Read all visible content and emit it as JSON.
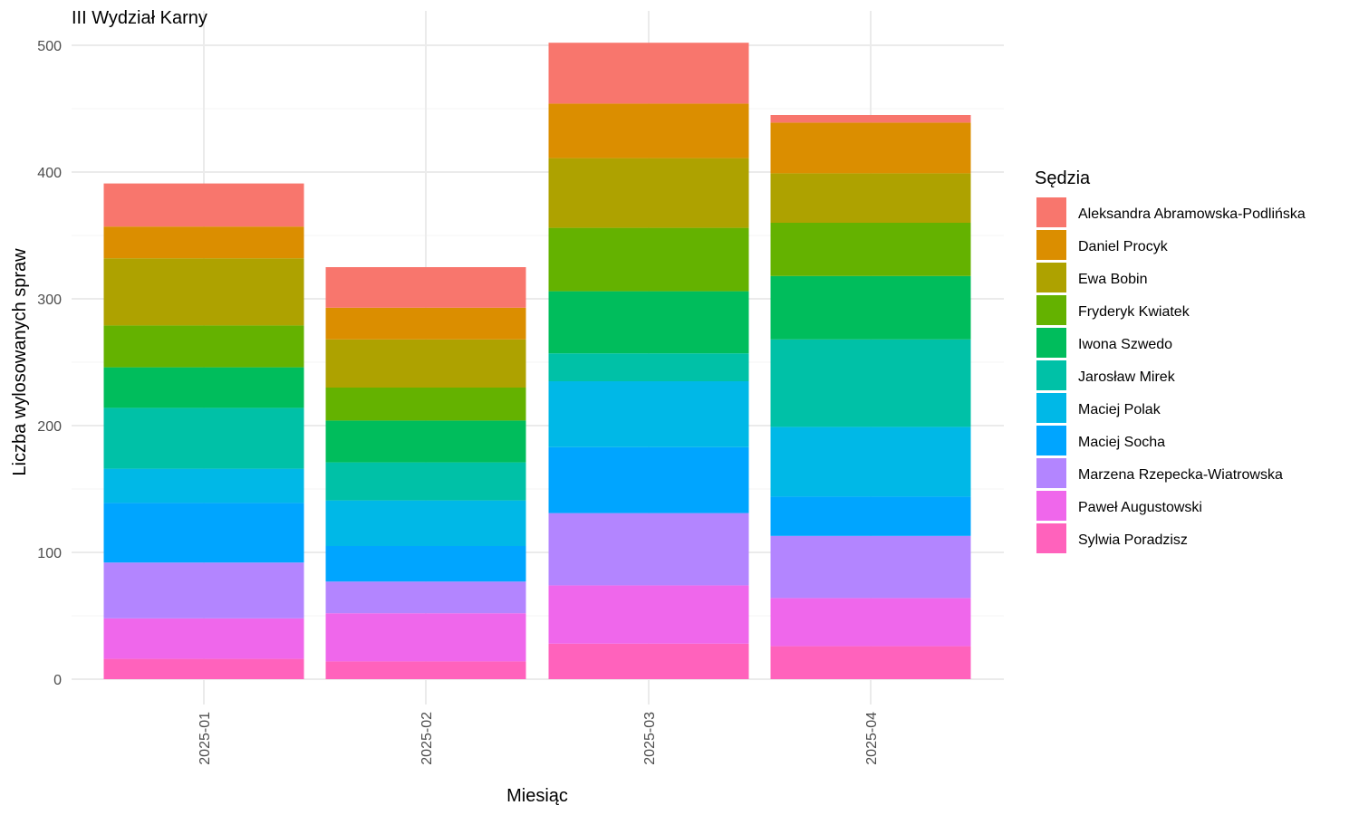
{
  "chart_data": {
    "type": "bar",
    "stacked": true,
    "title": "III Wydział Karny",
    "xlabel": "Miesiąc",
    "ylabel": "Liczba wylosowanych spraw",
    "ylim": [
      0,
      520
    ],
    "yticks": [
      0,
      100,
      200,
      300,
      400,
      500
    ],
    "grid": true,
    "legend_position": "right",
    "legend_title": "Sędzia",
    "categories": [
      "2025-01",
      "2025-02",
      "2025-03",
      "2025-04"
    ],
    "series": [
      {
        "name": "Sylwia Poradzisz",
        "color": "#FF62BC",
        "values": [
          16,
          14,
          28,
          26
        ]
      },
      {
        "name": "Paweł Augustowski",
        "color": "#EF67EB",
        "values": [
          32,
          38,
          46,
          38
        ]
      },
      {
        "name": "Marzena Rzepecka-Wiatrowska",
        "color": "#B385FF",
        "values": [
          44,
          25,
          57,
          49
        ]
      },
      {
        "name": "Maciej Socha",
        "color": "#00A5FF",
        "values": [
          47,
          28,
          52,
          31
        ]
      },
      {
        "name": "Maciej Polak",
        "color": "#00B8E7",
        "values": [
          27,
          36,
          52,
          55
        ]
      },
      {
        "name": "Jarosław Mirek",
        "color": "#00C1A7",
        "values": [
          48,
          30,
          22,
          69
        ]
      },
      {
        "name": "Iwona Szwedo",
        "color": "#00BD5C",
        "values": [
          32,
          33,
          49,
          50
        ]
      },
      {
        "name": "Fryderyk Kwiatek",
        "color": "#64B200",
        "values": [
          33,
          26,
          50,
          42
        ]
      },
      {
        "name": "Ewa Bobin",
        "color": "#AEA200",
        "values": [
          53,
          38,
          55,
          39
        ]
      },
      {
        "name": "Daniel Procyk",
        "color": "#DB8E00",
        "values": [
          25,
          25,
          43,
          40
        ]
      },
      {
        "name": "Aleksandra Abramowska-Podlińska",
        "color": "#F8766D",
        "values": [
          34,
          32,
          48,
          6
        ]
      }
    ],
    "legend_order": [
      "Aleksandra Abramowska-Podlińska",
      "Daniel Procyk",
      "Ewa Bobin",
      "Fryderyk Kwiatek",
      "Iwona Szwedo",
      "Jarosław Mirek",
      "Maciej Polak",
      "Maciej Socha",
      "Marzena Rzepecka-Wiatrowska",
      "Paweł Augustowski",
      "Sylwia Poradzisz"
    ]
  }
}
